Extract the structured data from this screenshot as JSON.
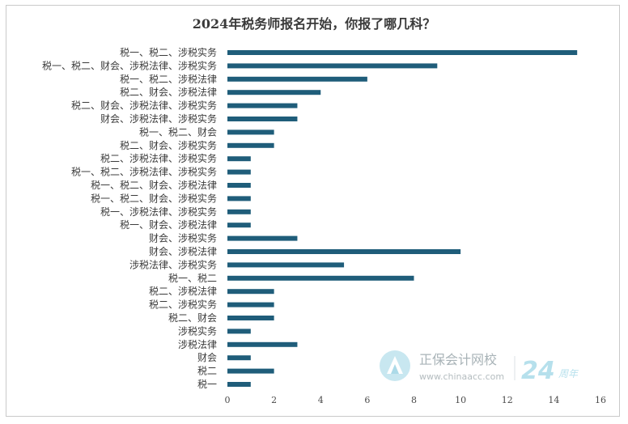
{
  "chart_data": {
    "type": "bar",
    "orientation": "horizontal",
    "title": "2024年税务师报名开始，你报了哪几科？",
    "xlabel": "",
    "ylabel": "",
    "xlim": [
      0,
      16
    ],
    "ticks": [
      0,
      2,
      4,
      6,
      8,
      10,
      12,
      14,
      16
    ],
    "grid": false,
    "bar_color": "#1f5d7a",
    "categories": [
      "税一、税二、涉税实务",
      "税一、税二、财会、涉税法律、涉税实务",
      "税一、税二、涉税法律",
      "税二、财会、涉税法律",
      "税二、财会、涉税法律、涉税实务",
      "财会、涉税法律、涉税实务",
      "税一、税二、财会",
      "税二、财会、涉税实务",
      "税二、涉税法律、涉税实务",
      "税一、税二、涉税法律、涉税实务",
      "税一、税二、财会、涉税法律",
      "税一、税二、财会、涉税实务",
      "税一、涉税法律、涉税实务",
      "税一、财会、涉税法律",
      "财会、涉税实务",
      "财会、涉税法律",
      "涉税法律、涉税实务",
      "税一、税二",
      "税二、涉税法律",
      "税二、涉税实务",
      "税二、财会",
      "涉税实务",
      "涉税法律",
      "财会",
      "税二",
      "税一"
    ],
    "values": [
      15,
      9,
      6,
      4,
      3,
      3,
      2,
      2,
      1,
      1,
      1,
      1,
      1,
      1,
      3,
      10,
      5,
      8,
      2,
      2,
      2,
      1,
      3,
      1,
      2,
      1
    ]
  },
  "watermark": {
    "name": "正保会计网校",
    "url": "www.chinaacc.com",
    "anniv_number": "24",
    "anniv_text": "周年",
    "logo_icon": "chinaacc-logo-icon",
    "color": "#9ed4e4"
  }
}
